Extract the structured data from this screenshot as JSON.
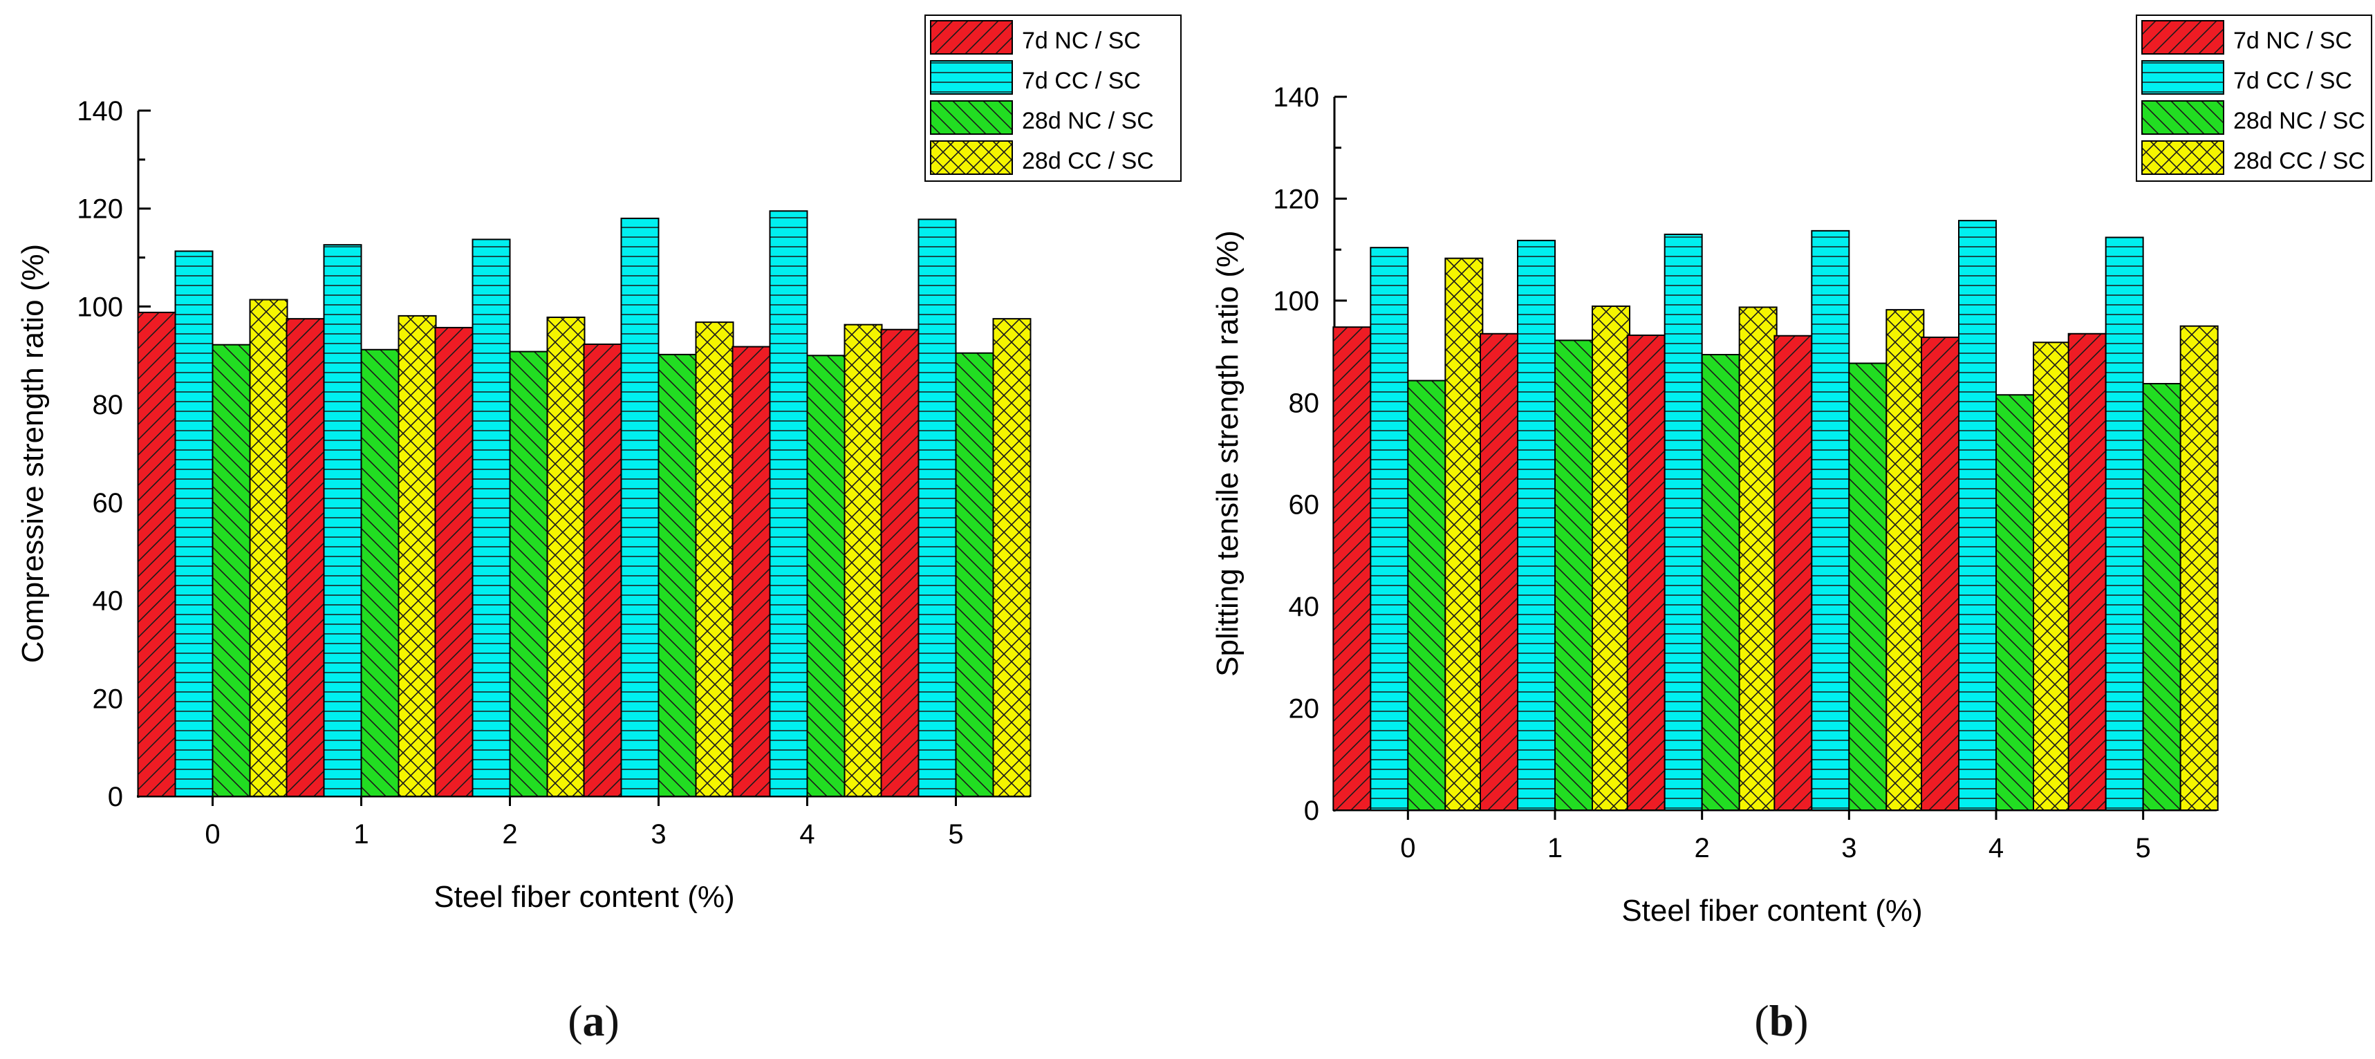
{
  "chart_data": [
    {
      "type": "bar",
      "panel_label": "a",
      "title": "",
      "xlabel": "Steel fiber content (%)",
      "ylabel": "Compressive strength ratio (%)",
      "ylim": [
        0,
        140
      ],
      "yticks": [
        0,
        20,
        40,
        60,
        80,
        100,
        120,
        140
      ],
      "categories": [
        "0",
        "1",
        "2",
        "3",
        "4",
        "5"
      ],
      "legend_position": "top-right",
      "grid": false,
      "series": [
        {
          "name": "7d NC / SC",
          "color": "#ee1c24",
          "pattern": "diag-right",
          "values": [
            98.8,
            97.5,
            95.7,
            92.3,
            91.8,
            95.3
          ]
        },
        {
          "name": "7d CC / SC",
          "color": "#00f0f0",
          "pattern": "horizontal",
          "values": [
            111.3,
            112.6,
            113.7,
            118.0,
            119.5,
            117.8
          ]
        },
        {
          "name": "28d NC / SC",
          "color": "#22dd22",
          "pattern": "diag-left",
          "values": [
            92.2,
            91.2,
            90.8,
            90.2,
            90.0,
            90.5
          ]
        },
        {
          "name": "28d CC / SC",
          "color": "#f5f500",
          "pattern": "crosshatch",
          "values": [
            101.4,
            98.1,
            97.8,
            96.8,
            96.3,
            97.5
          ]
        }
      ]
    },
    {
      "type": "bar",
      "panel_label": "b",
      "title": "",
      "xlabel": "Steel fiber content (%)",
      "ylabel": "Splitting tensile strength ratio (%)",
      "ylim": [
        0,
        140
      ],
      "yticks": [
        0,
        20,
        40,
        60,
        80,
        100,
        120,
        140
      ],
      "categories": [
        "0",
        "1",
        "2",
        "3",
        "4",
        "5"
      ],
      "legend_position": "top-right",
      "grid": false,
      "series": [
        {
          "name": "7d NC / SC",
          "color": "#ee1c24",
          "pattern": "diag-right",
          "values": [
            94.8,
            93.5,
            93.2,
            93.1,
            92.8,
            93.5
          ]
        },
        {
          "name": "7d CC / SC",
          "color": "#00f0f0",
          "pattern": "horizontal",
          "values": [
            110.4,
            111.8,
            113.0,
            113.7,
            115.7,
            112.4
          ]
        },
        {
          "name": "28d NC / SC",
          "color": "#22dd22",
          "pattern": "diag-left",
          "values": [
            84.3,
            92.2,
            89.4,
            87.7,
            81.5,
            83.7
          ]
        },
        {
          "name": "28d CC / SC",
          "color": "#f5f500",
          "pattern": "crosshatch",
          "values": [
            108.3,
            98.9,
            98.7,
            98.2,
            91.8,
            95.0
          ]
        }
      ]
    }
  ]
}
